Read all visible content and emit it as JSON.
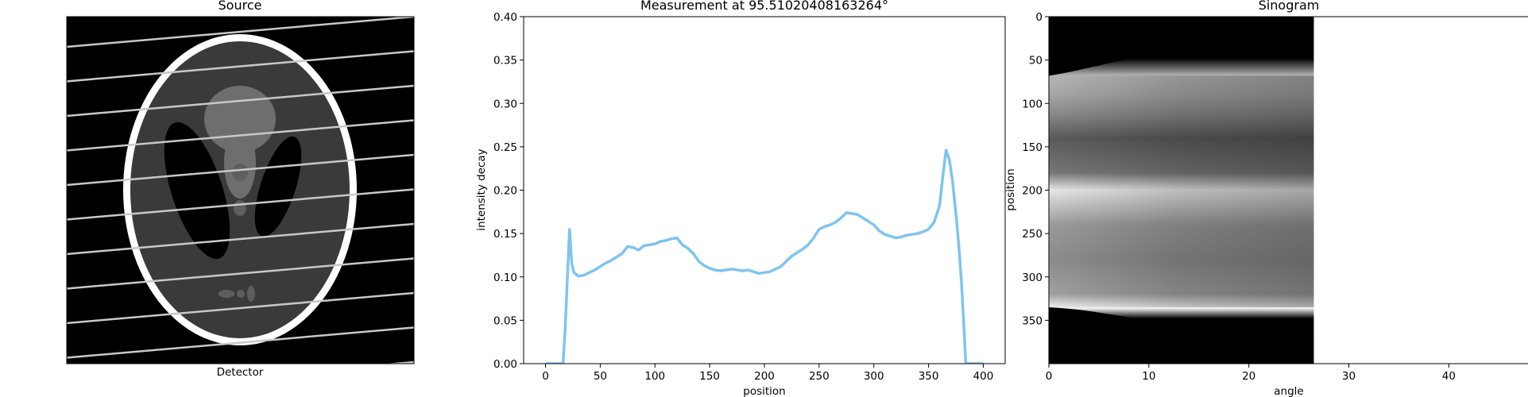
{
  "panels": {
    "source": {
      "title": "Source",
      "xlabel": "Detector"
    },
    "sinogram": {
      "title": "Sinogram",
      "xlabel": "angle",
      "ylabel": "position",
      "xticks": [
        "0",
        "10",
        "20",
        "30",
        "40"
      ],
      "yticks": [
        "0",
        "50",
        "100",
        "150",
        "200",
        "250",
        "300",
        "350"
      ],
      "filled_angle_max": 26.5,
      "angle_range": [
        0,
        48
      ],
      "position_range": [
        0,
        400
      ]
    }
  },
  "chart_data": {
    "type": "line",
    "title": "Measurement at 95.51020408163264°",
    "xlabel": "position",
    "ylabel": "intensity decay",
    "xlim": [
      -20,
      420
    ],
    "ylim": [
      0,
      0.4
    ],
    "xticks": [
      "0",
      "50",
      "100",
      "150",
      "200",
      "250",
      "300",
      "350",
      "400"
    ],
    "yticks": [
      "0.00",
      "0.05",
      "0.10",
      "0.15",
      "0.20",
      "0.25",
      "0.30",
      "0.35",
      "0.40"
    ],
    "line_color": "#7fc4ef",
    "series": [
      {
        "x": [
          0,
          16,
          18,
          20,
          22,
          24,
          26,
          28,
          30,
          35,
          40,
          45,
          50,
          55,
          60,
          65,
          70,
          75,
          80,
          85,
          90,
          95,
          100,
          105,
          110,
          115,
          120,
          125,
          130,
          135,
          140,
          145,
          150,
          155,
          160,
          165,
          170,
          175,
          180,
          185,
          190,
          195,
          200,
          205,
          210,
          215,
          220,
          225,
          230,
          235,
          240,
          245,
          250,
          255,
          260,
          265,
          270,
          275,
          280,
          285,
          290,
          295,
          300,
          305,
          310,
          315,
          320,
          325,
          330,
          335,
          340,
          345,
          350,
          355,
          360,
          363,
          366,
          369,
          372,
          374,
          376,
          378,
          380,
          382,
          384,
          386,
          388,
          400
        ],
        "y": [
          0.0,
          0.0,
          0.04,
          0.1,
          0.155,
          0.115,
          0.105,
          0.103,
          0.101,
          0.102,
          0.105,
          0.108,
          0.112,
          0.116,
          0.119,
          0.123,
          0.127,
          0.135,
          0.134,
          0.131,
          0.136,
          0.137,
          0.138,
          0.141,
          0.142,
          0.144,
          0.145,
          0.137,
          0.133,
          0.127,
          0.118,
          0.113,
          0.11,
          0.108,
          0.107,
          0.108,
          0.109,
          0.108,
          0.107,
          0.108,
          0.106,
          0.104,
          0.105,
          0.106,
          0.109,
          0.112,
          0.118,
          0.124,
          0.128,
          0.132,
          0.137,
          0.145,
          0.155,
          0.158,
          0.16,
          0.163,
          0.168,
          0.174,
          0.173,
          0.172,
          0.168,
          0.164,
          0.16,
          0.153,
          0.149,
          0.147,
          0.145,
          0.146,
          0.148,
          0.149,
          0.15,
          0.152,
          0.155,
          0.163,
          0.182,
          0.215,
          0.246,
          0.235,
          0.21,
          0.185,
          0.16,
          0.13,
          0.095,
          0.05,
          0.0,
          0.0,
          0.0,
          0.0
        ]
      }
    ]
  }
}
